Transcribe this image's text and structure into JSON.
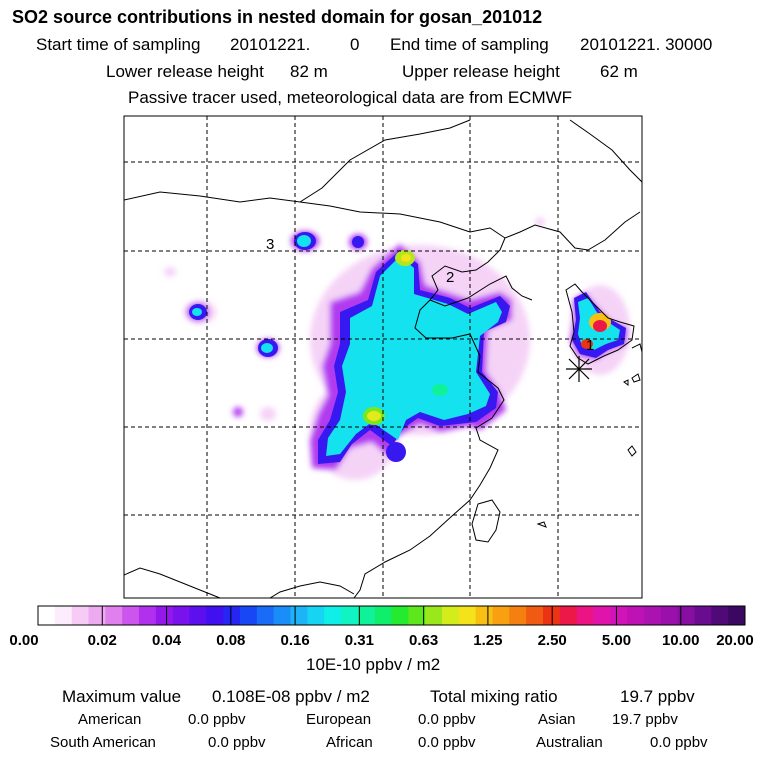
{
  "title": "SO2 source contributions in nested domain for gosan_201012",
  "header": {
    "start_label": "Start time of sampling",
    "start_date": "20101221.",
    "start_hms": "0",
    "end_label": "End time of sampling",
    "end_value": "20101221. 30000",
    "lower_label": "Lower release height",
    "lower_value": "82 m",
    "upper_label": "Upper release height",
    "upper_value": "62 m",
    "note": "Passive tracer used, meteorological data are from ECMWF"
  },
  "chart_data": {
    "type": "heatmap",
    "site_labels": [
      "1",
      "2",
      "3"
    ],
    "colorbar": {
      "ticks": [
        "0.00",
        "0.02",
        "0.04",
        "0.08",
        "0.16",
        "0.31",
        "0.63",
        "1.25",
        "2.50",
        "5.00",
        "10.00",
        "20.00"
      ],
      "unit": "10E-10 ppbv / m2",
      "colors": [
        "#ffffff",
        "#fcecfc",
        "#f6ccf6",
        "#eeaaf0",
        "#e080ee",
        "#cc55ee",
        "#b030ee",
        "#9418ec",
        "#7a12ee",
        "#5c10ee",
        "#4010f0",
        "#2626f4",
        "#1848f6",
        "#1a6cf8",
        "#1a8ef8",
        "#1eb2f6",
        "#16d4f2",
        "#10eee8",
        "#10f4c4",
        "#10f29a",
        "#10ee6c",
        "#24ea30",
        "#5ce81c",
        "#9ae81c",
        "#d2ec1c",
        "#f4e21a",
        "#f8c012",
        "#f8a012",
        "#f48010",
        "#f05a12",
        "#ec3414",
        "#ec1848",
        "#ec1482",
        "#e014aa",
        "#d014b8",
        "#be12b4",
        "#ac12b0",
        "#9a10aa",
        "#860ea0",
        "#6a0c90",
        "#500a78",
        "#3a0860"
      ]
    }
  },
  "stats": {
    "max_label": "Maximum value",
    "max_value": "0.108E-08 ppbv / m2",
    "total_label": "Total mixing ratio",
    "total_value": "19.7 ppbv",
    "regions": [
      {
        "name": "American",
        "value": "0.0 ppbv"
      },
      {
        "name": "European",
        "value": "0.0 ppbv"
      },
      {
        "name": "Asian",
        "value": "19.7 ppbv"
      },
      {
        "name": "South American",
        "value": "0.0 ppbv"
      },
      {
        "name": "African",
        "value": "0.0 ppbv"
      },
      {
        "name": "Australian",
        "value": "0.0 ppbv"
      }
    ]
  }
}
